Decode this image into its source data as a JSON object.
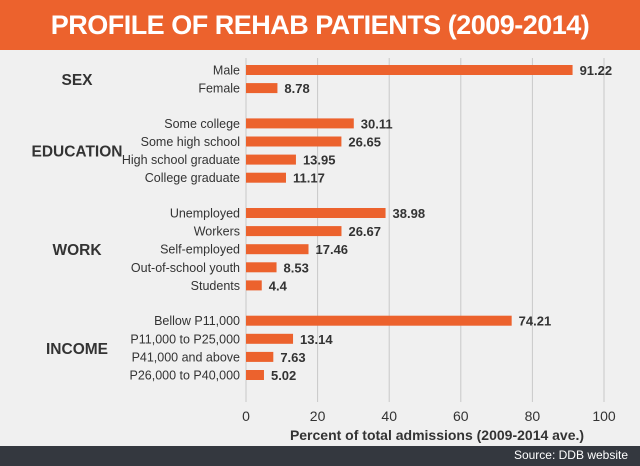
{
  "title": "PROFILE OF REHAB PATIENTS (2009-2014)",
  "source": "Source: DDB website",
  "colors": {
    "bar": "#ec622d",
    "header": "#ec622d",
    "footer": "#34383f",
    "background": "#f0f0f0",
    "text": "#333333",
    "grid": "#c9c9c9"
  },
  "chart_data": {
    "type": "bar",
    "orientation": "horizontal",
    "xlabel": "Percent of total admissions (2009-2014 ave.)",
    "xlim": [
      0,
      100
    ],
    "xticks": [
      0,
      20,
      40,
      60,
      80,
      100
    ],
    "grid": true,
    "groups": [
      {
        "name": "SEX",
        "categories": [
          "Male",
          "Female"
        ],
        "values": [
          91.22,
          8.78
        ]
      },
      {
        "name": "EDUCATION",
        "categories": [
          "Some college",
          "Some high school",
          "High school graduate",
          "College graduate"
        ],
        "values": [
          30.11,
          26.65,
          13.95,
          11.17
        ]
      },
      {
        "name": "WORK",
        "categories": [
          "Unemployed",
          "Workers",
          "Self-employed",
          "Out-of-school youth",
          "Students"
        ],
        "values": [
          38.98,
          26.67,
          17.46,
          8.53,
          4.4
        ]
      },
      {
        "name": "INCOME",
        "categories": [
          "Bellow P11,000",
          "P11,000 to P25,000",
          "P41,000 and above",
          "P26,000 to P40,000"
        ],
        "values": [
          74.21,
          13.14,
          7.63,
          5.02
        ]
      }
    ]
  }
}
